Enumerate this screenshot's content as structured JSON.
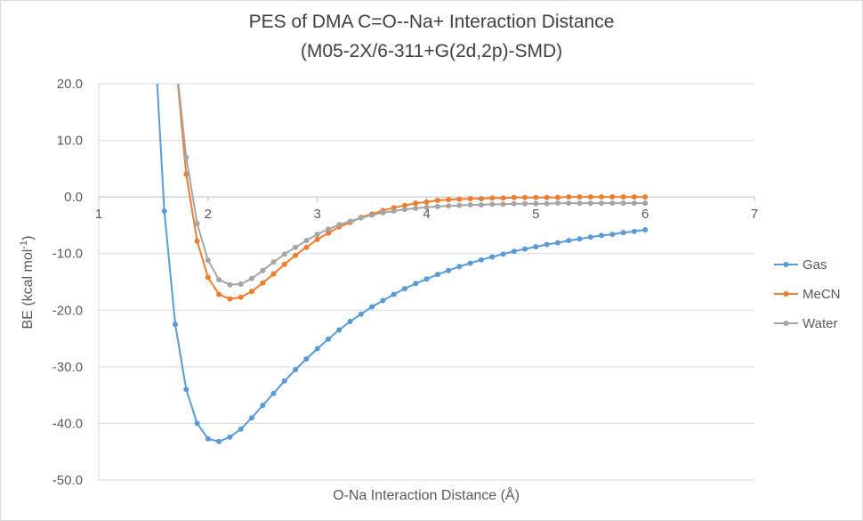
{
  "chart_data": {
    "type": "line",
    "title_line_1": "PES of DMA C=O--Na+ Interaction Distance",
    "title_line_2": "(M05-2X/6-311+G(2d,2p)-SMD)",
    "xlabel": "O-Na Interaction Distance (Å)",
    "ylabel_main": "BE (kcal mol",
    "ylabel_sup": "-1",
    "ylabel_end": ")",
    "xlim": [
      1,
      7
    ],
    "ylim": [
      -50,
      20
    ],
    "x_ticks": [
      "1",
      "2",
      "3",
      "4",
      "5",
      "6",
      "7"
    ],
    "y_ticks": [
      "20.0",
      "10.0",
      "0.0",
      "-10.0",
      "-20.0",
      "-30.0",
      "-40.0",
      "-50.0"
    ],
    "grid": "horizontal",
    "legend_position": "right",
    "x": [
      1.5,
      1.6,
      1.7,
      1.8,
      1.9,
      2.0,
      2.1,
      2.2,
      2.3,
      2.4,
      2.5,
      2.6,
      2.7,
      2.8,
      2.9,
      3.0,
      3.1,
      3.2,
      3.3,
      3.4,
      3.5,
      3.6,
      3.7,
      3.8,
      3.9,
      4.0,
      4.1,
      4.2,
      4.3,
      4.4,
      4.5,
      4.6,
      4.7,
      4.8,
      4.9,
      5.0,
      5.1,
      5.2,
      5.3,
      5.4,
      5.5,
      5.6,
      5.7,
      5.8,
      5.9,
      6.0
    ],
    "series": [
      {
        "name": "Gas",
        "color": "#5b9bd5",
        "values": [
          32,
          -2.5,
          -22.5,
          -34,
          -40,
          -42.7,
          -43.2,
          -42.4,
          -41,
          -39,
          -36.8,
          -34.7,
          -32.5,
          -30.5,
          -28.6,
          -26.8,
          -25.1,
          -23.5,
          -22,
          -20.7,
          -19.4,
          -18.3,
          -17.2,
          -16.2,
          -15.3,
          -14.5,
          -13.7,
          -13,
          -12.3,
          -11.7,
          -11.1,
          -10.6,
          -10.1,
          -9.6,
          -9.2,
          -8.8,
          -8.4,
          -8.1,
          -7.7,
          -7.4,
          -7.1,
          -6.8,
          -6.6,
          -6.3,
          -6.1,
          -5.8
        ]
      },
      {
        "name": "MeCN",
        "color": "#ed7d31",
        "values": [
          null,
          null,
          25,
          4,
          -7.8,
          -14.2,
          -17.2,
          -18,
          -17.7,
          -16.7,
          -15.2,
          -13.6,
          -11.9,
          -10.3,
          -8.9,
          -7.5,
          -6.4,
          -5.3,
          -4.5,
          -3.6,
          -3,
          -2.4,
          -1.9,
          -1.5,
          -1.1,
          -0.9,
          -0.6,
          -0.5,
          -0.4,
          -0.3,
          -0.3,
          -0.2,
          -0.2,
          -0.1,
          -0.1,
          -0.1,
          -0.1,
          -0.1,
          0,
          0,
          0,
          0,
          0,
          0,
          0,
          0
        ]
      },
      {
        "name": "Water",
        "color": "#a5a5a5",
        "values": [
          null,
          null,
          25,
          7,
          -4.7,
          -11.2,
          -14.6,
          -15.5,
          -15.4,
          -14.4,
          -13,
          -11.5,
          -10.1,
          -8.9,
          -7.7,
          -6.6,
          -5.7,
          -4.9,
          -4.3,
          -3.7,
          -3.2,
          -2.8,
          -2.5,
          -2.2,
          -2,
          -1.8,
          -1.7,
          -1.6,
          -1.5,
          -1.4,
          -1.4,
          -1.3,
          -1.3,
          -1.2,
          -1.2,
          -1.2,
          -1.2,
          -1.1,
          -1.1,
          -1.1,
          -1.1,
          -1.1,
          -1.1,
          -1.1,
          -1.1,
          -1.1
        ]
      }
    ]
  }
}
